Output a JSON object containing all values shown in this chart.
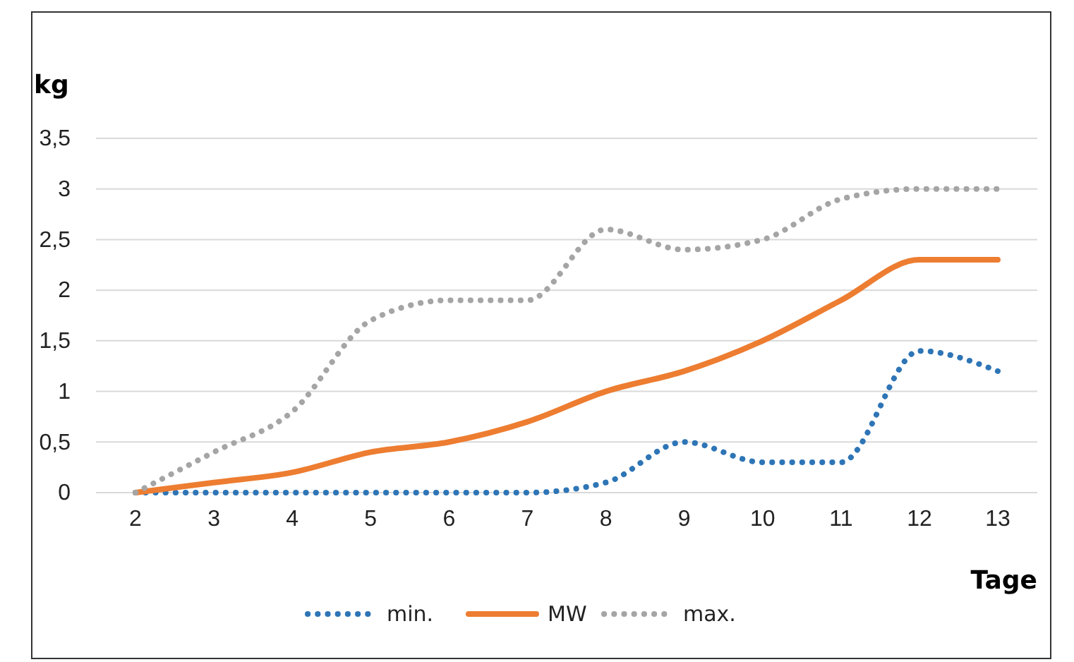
{
  "chart_data": {
    "type": "line",
    "ylabel": "kg",
    "xlabel": "Tage",
    "categories": [
      "2",
      "3",
      "4",
      "5",
      "6",
      "7",
      "8",
      "9",
      "10",
      "11",
      "12",
      "13"
    ],
    "series": [
      {
        "name": "min.",
        "color": "#2e75b6",
        "line_style": "dotted",
        "values": [
          0,
          0,
          0,
          0,
          0,
          0,
          0.1,
          0.5,
          0.3,
          0.3,
          1.4,
          1.2
        ]
      },
      {
        "name": "MW",
        "color": "#ed7d31",
        "line_style": "solid",
        "values": [
          0,
          0.1,
          0.2,
          0.4,
          0.5,
          0.7,
          1.0,
          1.2,
          1.5,
          1.9,
          2.3,
          2.3
        ]
      },
      {
        "name": "max.",
        "color": "#a5a5a5",
        "line_style": "dotted",
        "values": [
          0,
          0.4,
          0.8,
          1.7,
          1.9,
          1.9,
          2.6,
          2.4,
          2.5,
          2.9,
          3.0,
          3.0
        ]
      }
    ],
    "ylim": [
      0,
      3.5
    ],
    "yticks": [
      0,
      {
        "value": 0.5,
        "label": "0,5"
      },
      1,
      {
        "value": 1.5,
        "label": "1,5"
      },
      2,
      {
        "value": 2.5,
        "label": "2,5"
      },
      3,
      {
        "value": 3.5,
        "label": "3,5"
      }
    ],
    "grid": "y",
    "legend": "bottom",
    "marker": "none"
  }
}
